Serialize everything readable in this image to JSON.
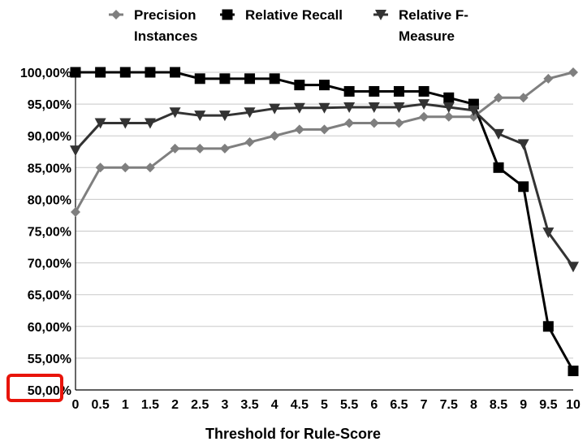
{
  "chart_data": {
    "type": "line",
    "title": "",
    "xlabel": "Threshold for Rule-Score",
    "ylabel": "",
    "x": [
      "0",
      "0.5",
      "1",
      "1.5",
      "2",
      "2.5",
      "3",
      "3.5",
      "4",
      "4.5",
      "5",
      "5.5",
      "6",
      "6.5",
      "7",
      "7.5",
      "8",
      "8.5",
      "9",
      "9.5",
      "10"
    ],
    "ylim": [
      0.5,
      1.0
    ],
    "yticks": [
      "50,00%",
      "55,00%",
      "60,00%",
      "65,00%",
      "70,00%",
      "75,00%",
      "80,00%",
      "85,00%",
      "90,00%",
      "95,00%",
      "100,00%"
    ],
    "grid": true,
    "legend_position": "top",
    "series": [
      {
        "name_line1": "Precision",
        "name_line2": "Instances",
        "color": "#7f7f7f",
        "marker": "diamond",
        "values": [
          0.78,
          0.85,
          0.85,
          0.85,
          0.88,
          0.88,
          0.88,
          0.89,
          0.9,
          0.91,
          0.91,
          0.92,
          0.92,
          0.92,
          0.93,
          0.93,
          0.93,
          0.96,
          0.96,
          0.99,
          1.0
        ]
      },
      {
        "name_line1": "Relative Recall",
        "name_line2": "",
        "color": "#000000",
        "marker": "square",
        "values": [
          1.0,
          1.0,
          1.0,
          1.0,
          1.0,
          0.99,
          0.99,
          0.99,
          0.99,
          0.98,
          0.98,
          0.97,
          0.97,
          0.97,
          0.97,
          0.96,
          0.95,
          0.85,
          0.82,
          0.6,
          0.53
        ]
      },
      {
        "name_line1": "Relative F-",
        "name_line2": "Measure",
        "color": "#333333",
        "marker": "triangle-down",
        "values": [
          0.877,
          0.92,
          0.92,
          0.92,
          0.937,
          0.932,
          0.932,
          0.937,
          0.943,
          0.944,
          0.944,
          0.945,
          0.945,
          0.945,
          0.95,
          0.945,
          0.94,
          0.903,
          0.887,
          0.748,
          0.694
        ]
      }
    ],
    "highlight": {
      "label": "50,00%",
      "color": "#e8140a"
    }
  }
}
